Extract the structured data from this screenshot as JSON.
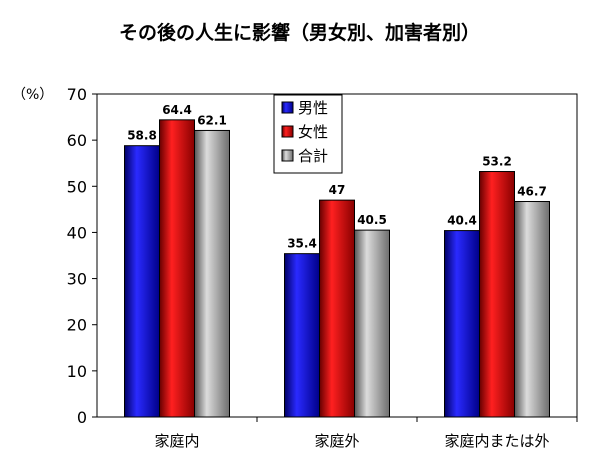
{
  "chart_data": {
    "type": "bar",
    "title": "その後の人生に影響（男女別、加害者別）",
    "y_unit_label": "（%）",
    "ylim": [
      0,
      70
    ],
    "yticks": [
      0,
      10,
      20,
      30,
      40,
      50,
      60,
      70
    ],
    "categories": [
      "家庭内",
      "家庭外",
      "家庭内または外"
    ],
    "series": [
      {
        "name": "男性",
        "values": [
          58.8,
          35.4,
          40.4
        ],
        "labels": [
          "58.8",
          "35.4",
          "40.4"
        ],
        "color": "#0000cc"
      },
      {
        "name": "女性",
        "values": [
          64.4,
          47,
          53.2
        ],
        "labels": [
          "64.4",
          "47",
          "53.2"
        ],
        "color": "#dd0000"
      },
      {
        "name": "合計",
        "values": [
          62.1,
          40.5,
          46.7
        ],
        "labels": [
          "62.1",
          "40.5",
          "46.7"
        ],
        "color": "#a8a8a8"
      }
    ],
    "legend": "top-center",
    "grid": false
  }
}
